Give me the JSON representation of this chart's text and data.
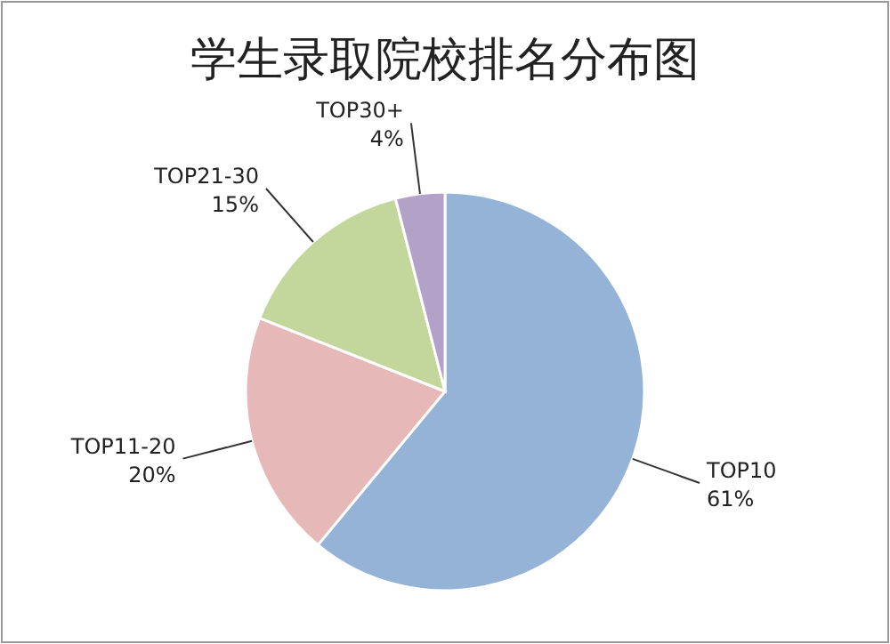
{
  "chart_data": {
    "type": "pie",
    "title": "学生录取院校排名分布图",
    "categories": [
      "TOP10",
      "TOP11-20",
      "TOP21-30",
      "TOP30+"
    ],
    "values": [
      61,
      20,
      15,
      4
    ],
    "colors": [
      "#95b3d7",
      "#e6b9b8",
      "#c3d69b",
      "#b3a2c7"
    ],
    "value_labels": [
      "61%",
      "20%",
      "15%",
      "4%"
    ]
  }
}
